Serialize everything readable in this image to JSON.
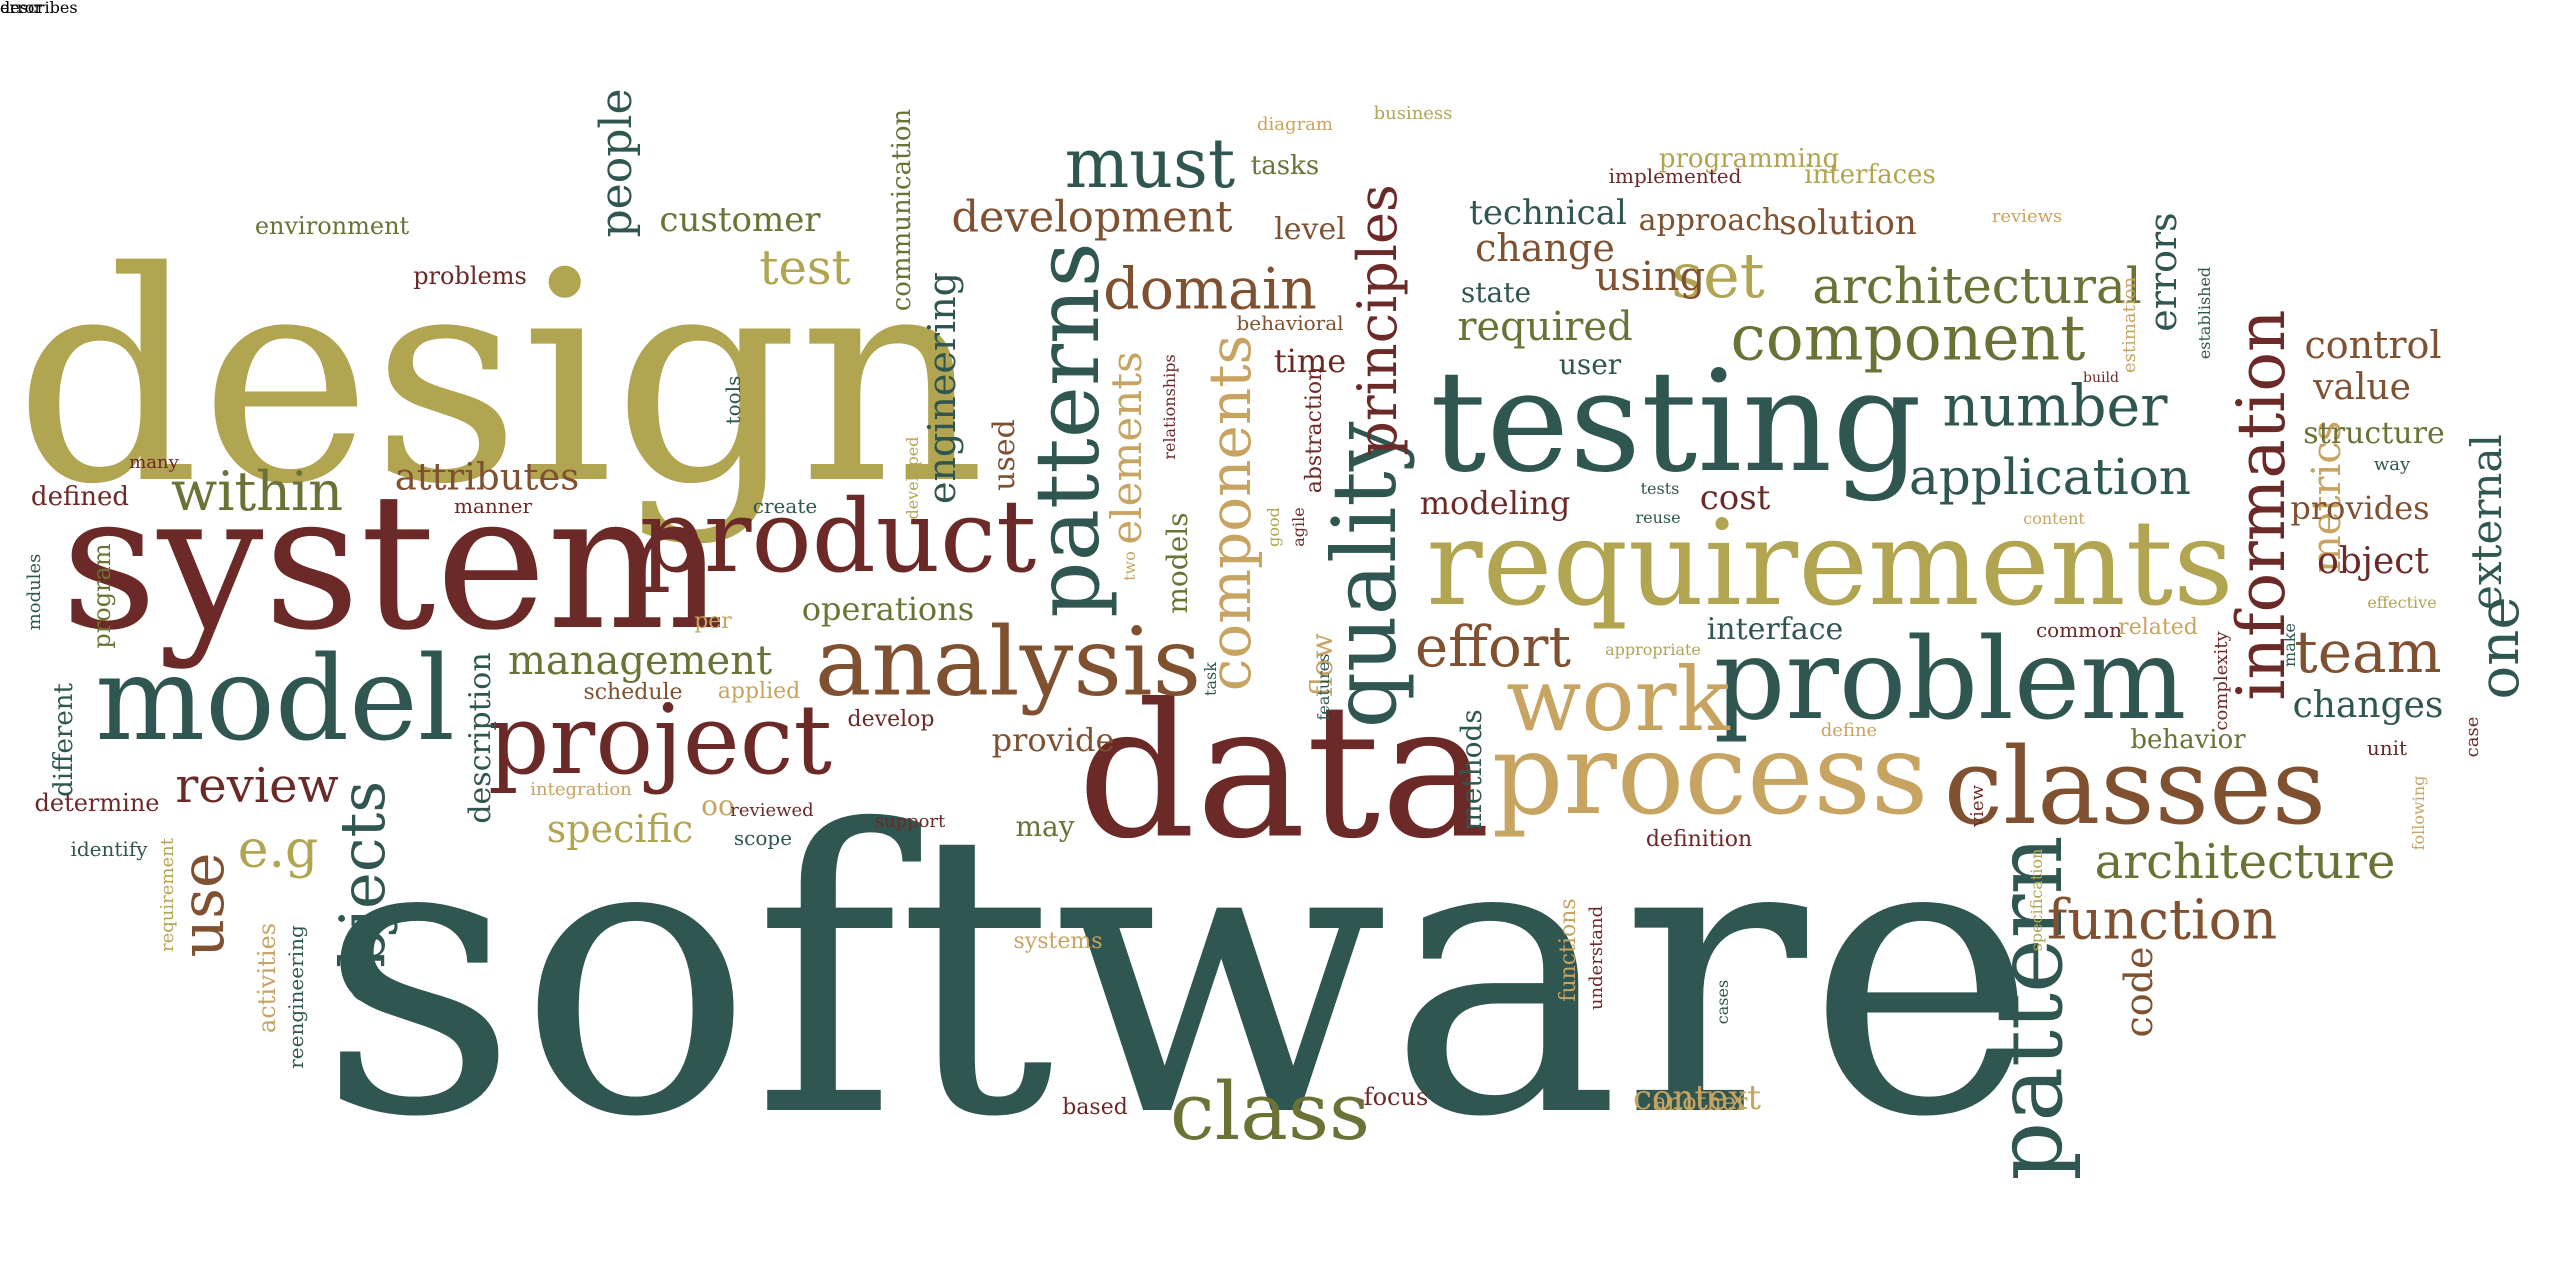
{
  "palette": {
    "teal": "#2f5650",
    "olive": "#b1a551",
    "maroon": "#6b2a27",
    "brown": "#7f5131",
    "tan": "#c7a461",
    "green": "#6c7235"
  },
  "words": [
    {
      "text": "software",
      "color": "teal"
    },
    {
      "text": "design",
      "color": "olive"
    },
    {
      "text": "system",
      "color": "maroon"
    },
    {
      "text": "data",
      "color": "maroon"
    },
    {
      "text": "testing",
      "color": "teal"
    },
    {
      "text": "requirements",
      "color": "olive"
    },
    {
      "text": "process",
      "color": "tan"
    },
    {
      "text": "classes",
      "color": "brown"
    },
    {
      "text": "problem",
      "color": "teal"
    },
    {
      "text": "model",
      "color": "teal"
    },
    {
      "text": "analysis",
      "color": "brown"
    },
    {
      "text": "product",
      "color": "maroon"
    },
    {
      "text": "project",
      "color": "maroon"
    },
    {
      "text": "work",
      "color": "tan"
    },
    {
      "text": "pattern",
      "color": "teal"
    },
    {
      "text": "quality",
      "color": "teal"
    },
    {
      "text": "patterns",
      "color": "teal"
    },
    {
      "text": "information",
      "color": "maroon"
    },
    {
      "text": "class",
      "color": "green"
    },
    {
      "text": "must",
      "color": "teal"
    },
    {
      "text": "component",
      "color": "green"
    },
    {
      "text": "architectural",
      "color": "green"
    },
    {
      "text": "components",
      "color": "tan"
    },
    {
      "text": "objects",
      "color": "teal"
    },
    {
      "text": "set",
      "color": "olive"
    },
    {
      "text": "number",
      "color": "teal"
    },
    {
      "text": "application",
      "color": "teal"
    },
    {
      "text": "architecture",
      "color": "green"
    },
    {
      "text": "function",
      "color": "brown"
    },
    {
      "text": "domain",
      "color": "brown"
    },
    {
      "text": "within",
      "color": "green"
    },
    {
      "text": "use",
      "color": "brown"
    },
    {
      "text": "e.g",
      "color": "olive"
    },
    {
      "text": "review",
      "color": "maroon"
    },
    {
      "text": "team",
      "color": "brown"
    },
    {
      "text": "one",
      "color": "teal"
    },
    {
      "text": "principles",
      "color": "maroon"
    },
    {
      "text": "effort",
      "color": "brown"
    },
    {
      "text": "development",
      "color": "brown"
    },
    {
      "text": "test",
      "color": "olive"
    },
    {
      "text": "people",
      "color": "teal"
    },
    {
      "text": "customer",
      "color": "green"
    },
    {
      "text": "engineering",
      "color": "teal"
    },
    {
      "text": "management",
      "color": "green"
    },
    {
      "text": "attributes",
      "color": "brown"
    },
    {
      "text": "required",
      "color": "green"
    },
    {
      "text": "using",
      "color": "brown"
    },
    {
      "text": "technical",
      "color": "teal"
    },
    {
      "text": "change",
      "color": "brown"
    },
    {
      "text": "changes",
      "color": "teal"
    },
    {
      "text": "metrics",
      "color": "tan"
    },
    {
      "text": "errors",
      "color": "teal"
    },
    {
      "text": "control",
      "color": "brown"
    },
    {
      "text": "value",
      "color": "brown"
    },
    {
      "text": "structure",
      "color": "green"
    },
    {
      "text": "provides",
      "color": "brown"
    },
    {
      "text": "object",
      "color": "maroon"
    },
    {
      "text": "external",
      "color": "teal"
    },
    {
      "text": "elements",
      "color": "tan"
    },
    {
      "text": "code",
      "color": "brown"
    },
    {
      "text": "context",
      "color": "tan"
    },
    {
      "text": "description",
      "color": "teal"
    },
    {
      "text": "specific",
      "color": "olive"
    },
    {
      "text": "operations",
      "color": "green"
    },
    {
      "text": "provide",
      "color": "brown"
    },
    {
      "text": "modeling",
      "color": "maroon"
    },
    {
      "text": "cost",
      "color": "maroon"
    },
    {
      "text": "interface",
      "color": "teal"
    },
    {
      "text": "solution",
      "color": "brown"
    },
    {
      "text": "approach",
      "color": "brown"
    },
    {
      "text": "interfaces",
      "color": "olive"
    },
    {
      "text": "programming",
      "color": "olive"
    },
    {
      "text": "tasks",
      "color": "green"
    },
    {
      "text": "level",
      "color": "brown"
    },
    {
      "text": "time",
      "color": "maroon"
    },
    {
      "text": "state",
      "color": "teal"
    },
    {
      "text": "user",
      "color": "teal"
    },
    {
      "text": "behavior",
      "color": "green"
    },
    {
      "text": "flow",
      "color": "tan"
    },
    {
      "text": "models",
      "color": "green"
    },
    {
      "text": "used",
      "color": "brown"
    },
    {
      "text": "may",
      "color": "green"
    },
    {
      "text": "oo",
      "color": "tan"
    },
    {
      "text": "communication",
      "color": "green"
    },
    {
      "text": "environment",
      "color": "green"
    },
    {
      "text": "problems",
      "color": "maroon"
    },
    {
      "text": "defined",
      "color": "maroon"
    },
    {
      "text": "program",
      "color": "green"
    },
    {
      "text": "different",
      "color": "teal"
    },
    {
      "text": "determine",
      "color": "maroon"
    },
    {
      "text": "identify",
      "color": "teal"
    },
    {
      "text": "activities",
      "color": "tan"
    },
    {
      "text": "reengineering",
      "color": "teal"
    },
    {
      "text": "requirement",
      "color": "olive"
    },
    {
      "text": "modules",
      "color": "teal"
    },
    {
      "text": "many",
      "color": "maroon"
    },
    {
      "text": "manner",
      "color": "maroon"
    },
    {
      "text": "tools",
      "color": "teal"
    },
    {
      "text": "create",
      "color": "teal"
    },
    {
      "text": "developed",
      "color": "olive"
    },
    {
      "text": "per",
      "color": "tan"
    },
    {
      "text": "schedule",
      "color": "brown"
    },
    {
      "text": "applied",
      "color": "tan"
    },
    {
      "text": "develop",
      "color": "maroon"
    },
    {
      "text": "integration",
      "color": "tan"
    },
    {
      "text": "reviewed",
      "color": "maroon"
    },
    {
      "text": "scope",
      "color": "teal"
    },
    {
      "text": "support",
      "color": "maroon"
    },
    {
      "text": "systems",
      "color": "tan"
    },
    {
      "text": "based",
      "color": "maroon"
    },
    {
      "text": "focus",
      "color": "maroon"
    },
    {
      "text": "another",
      "color": "tan"
    },
    {
      "text": "definition",
      "color": "maroon"
    },
    {
      "text": "functions",
      "color": "tan"
    },
    {
      "text": "understand",
      "color": "maroon"
    },
    {
      "text": "cases",
      "color": "teal"
    },
    {
      "text": "methods",
      "color": "teal"
    },
    {
      "text": "diagram",
      "color": "tan"
    },
    {
      "text": "business",
      "color": "olive"
    },
    {
      "text": "implemented",
      "color": "maroon"
    },
    {
      "text": "reviews",
      "color": "tan"
    },
    {
      "text": "relationships",
      "color": "maroon"
    },
    {
      "text": "behavioral",
      "color": "brown"
    },
    {
      "text": "abstraction",
      "color": "maroon"
    },
    {
      "text": "two",
      "color": "tan"
    },
    {
      "text": "task",
      "color": "teal"
    },
    {
      "text": "good",
      "color": "olive"
    },
    {
      "text": "agile",
      "color": "maroon"
    },
    {
      "text": "features",
      "color": "teal"
    },
    {
      "text": "tests",
      "color": "teal"
    },
    {
      "text": "reuse",
      "color": "teal"
    },
    {
      "text": "appropriate",
      "color": "olive"
    },
    {
      "text": "content",
      "color": "tan"
    },
    {
      "text": "common",
      "color": "maroon"
    },
    {
      "text": "related",
      "color": "tan"
    },
    {
      "text": "define",
      "color": "tan"
    },
    {
      "text": "build",
      "color": "maroon"
    },
    {
      "text": "estimation",
      "color": "tan"
    },
    {
      "text": "established",
      "color": "teal"
    },
    {
      "text": "way",
      "color": "teal"
    },
    {
      "text": "effective",
      "color": "olive"
    },
    {
      "text": "make",
      "color": "teal"
    },
    {
      "text": "complexity",
      "color": "maroon"
    },
    {
      "text": "case",
      "color": "maroon"
    },
    {
      "text": "unit",
      "color": "maroon"
    },
    {
      "text": "following",
      "color": "tan"
    },
    {
      "text": "view",
      "color": "maroon"
    },
    {
      "text": "specification",
      "color": "olive"
    },
    {
      "text": "describes",
      "color": "teal"
    },
    {
      "text": "error",
      "color": "maroon"
    }
  ]
}
